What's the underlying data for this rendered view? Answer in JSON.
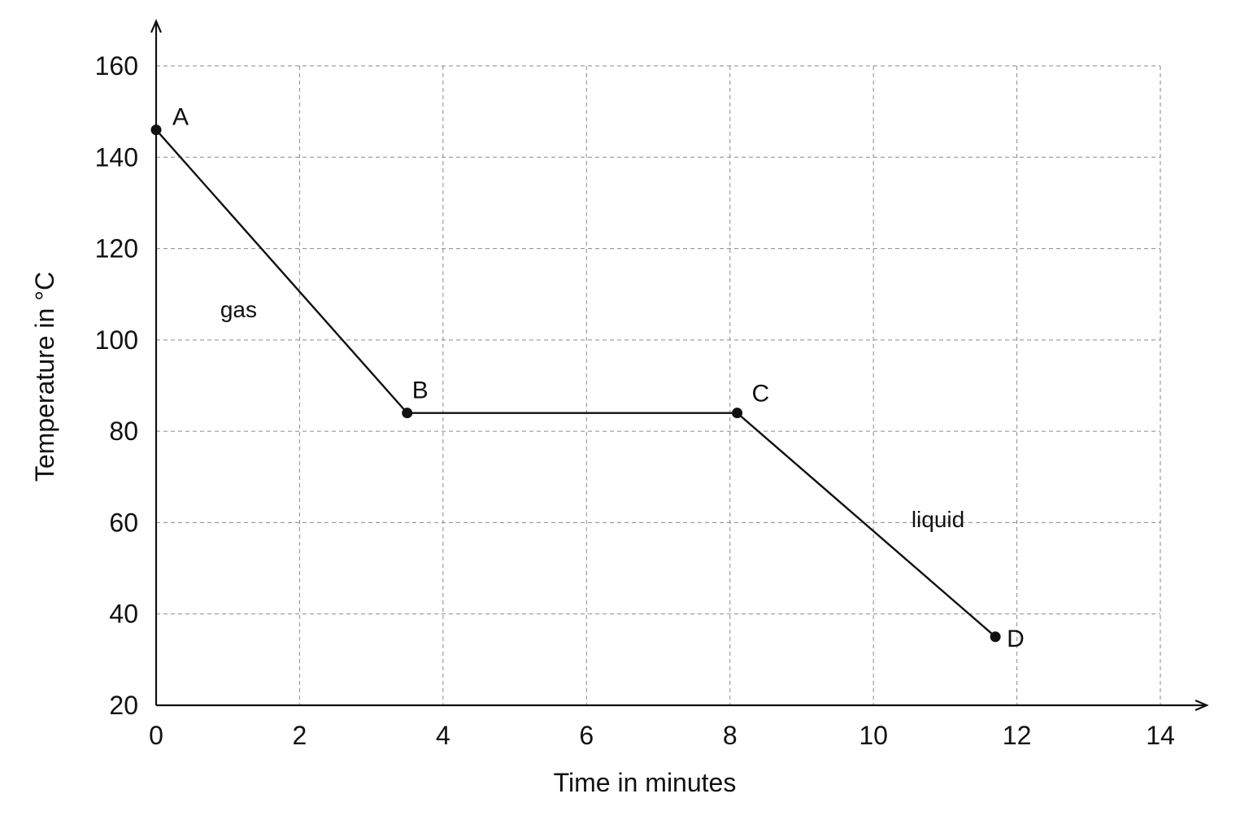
{
  "chart_data": {
    "type": "line",
    "xlabel": "Time in minutes",
    "ylabel": "Temperature in °C",
    "xlim": [
      0,
      14
    ],
    "ylim": [
      20,
      160
    ],
    "x_ticks": [
      0,
      2,
      4,
      6,
      8,
      10,
      12,
      14
    ],
    "y_ticks": [
      20,
      40,
      60,
      80,
      100,
      120,
      140,
      160
    ],
    "x_tick_labels": [
      "0",
      "2",
      "4",
      "6",
      "8",
      "10",
      12,
      "14"
    ],
    "y_tick_labels": [
      "20",
      "40",
      "60",
      "80",
      "100",
      "120",
      "140",
      "160"
    ],
    "grid": true,
    "series": [
      {
        "points": [
          {
            "label": "A",
            "x": 0,
            "y": 146
          },
          {
            "label": "B",
            "x": 3.5,
            "y": 84
          },
          {
            "label": "C",
            "x": 8.1,
            "y": 84
          },
          {
            "label": "D",
            "x": 11.7,
            "y": 35
          }
        ]
      }
    ],
    "annotations": [
      {
        "text": "gas",
        "x": 1.15,
        "y": 105
      },
      {
        "text": "liquid",
        "x": 10.9,
        "y": 59
      }
    ],
    "colors": {
      "line": "#111111",
      "grid": "#8a8a8a",
      "background": "#ffffff"
    }
  }
}
